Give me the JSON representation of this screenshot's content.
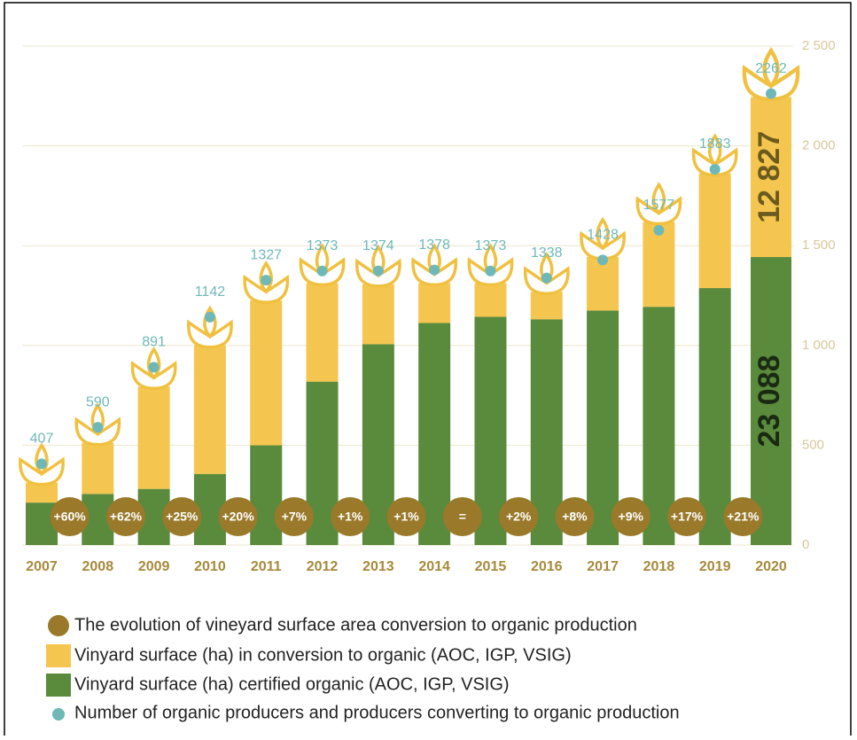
{
  "chart_data": {
    "type": "bar",
    "stacked": true,
    "categories": [
      "2007",
      "2008",
      "2009",
      "2010",
      "2011",
      "2012",
      "2013",
      "2014",
      "2015",
      "2016",
      "2017",
      "2018",
      "2019",
      "2020"
    ],
    "ylim": [
      0,
      40000
    ],
    "y2lim": [
      0,
      2500
    ],
    "y2ticks": [
      0,
      500,
      {
        "value": 1000,
        "label": "1 000"
      },
      {
        "value": 1500,
        "label": "1 500"
      },
      {
        "value": 2000,
        "label": "2 000"
      },
      {
        "value": 2500,
        "label": "2 500"
      }
    ],
    "grid": true,
    "series": [
      {
        "name": "Vinyard surface (ha) certified organic (AOC, IGP, VSIG)",
        "color": "#5a8a3c",
        "values": [
          3400,
          4100,
          4500,
          5700,
          8000,
          13100,
          16100,
          17800,
          18300,
          18100,
          18800,
          19100,
          20600,
          23088
        ],
        "value_labels": [
          null,
          null,
          null,
          null,
          null,
          null,
          null,
          null,
          null,
          null,
          null,
          null,
          null,
          "23 088"
        ]
      },
      {
        "name": "Vinyard surface (ha) in conversion to organic (AOC, IGP, VSIG)",
        "color": "#f5c64f",
        "values": [
          1600,
          4100,
          8200,
          10300,
          11600,
          7900,
          4800,
          3200,
          2700,
          2200,
          4300,
          6800,
          9200,
          12827
        ],
        "value_labels": [
          null,
          null,
          null,
          null,
          null,
          null,
          null,
          null,
          null,
          null,
          null,
          null,
          null,
          "12 827"
        ]
      },
      {
        "name": "Number of organic producers and producers converting to organic production",
        "color": "#6fb8b8",
        "axis": "y2",
        "type": "scatter",
        "values": [
          407,
          590,
          891,
          1142,
          1327,
          1373,
          1374,
          1378,
          1373,
          1338,
          1428,
          1577,
          1883,
          2262
        ]
      }
    ],
    "evolution": {
      "name": "The evolution of vineyard surface area conversion to organic production",
      "color": "#9a7a2a",
      "labels": [
        "+60%",
        "+62%",
        "+25%",
        "+20%",
        "+7%",
        "+1%",
        "+1%",
        "=",
        "+2%",
        "+8%",
        "+9%",
        "+17%",
        "+21%"
      ]
    }
  }
}
